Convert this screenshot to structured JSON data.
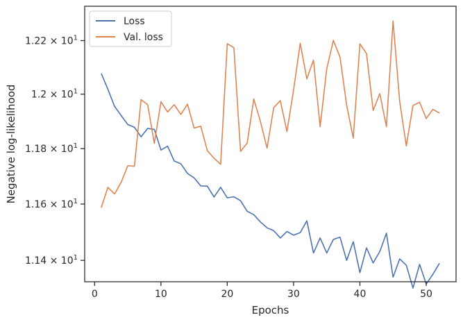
{
  "chart_data": {
    "type": "line",
    "xlabel": "Epochs",
    "ylabel": "Negative log-likelihood",
    "xlim": [
      -1.5,
      54.5
    ],
    "ylim": [
      11.325,
      12.33
    ],
    "y_scale": "log",
    "xticks": [
      0,
      10,
      20,
      30,
      40,
      50
    ],
    "xtick_labels": [
      "0",
      "10",
      "20",
      "30",
      "40",
      "50"
    ],
    "yticks": [
      11.4,
      11.6,
      11.8,
      12.0,
      12.2
    ],
    "ytick_labels": [
      {
        "base": "1.14",
        "mult": "× 10",
        "exp": "1"
      },
      {
        "base": "1.16",
        "mult": "× 10",
        "exp": "1"
      },
      {
        "base": "1.18",
        "mult": "× 10",
        "exp": "1"
      },
      {
        "base": "1.2",
        "mult": "× 10",
        "exp": "1"
      },
      {
        "base": "1.22",
        "mult": "× 10",
        "exp": "1"
      }
    ],
    "grid": false,
    "legend_position": "top-left",
    "x": [
      1,
      2,
      3,
      4,
      5,
      6,
      7,
      8,
      9,
      10,
      11,
      12,
      13,
      14,
      15,
      16,
      17,
      18,
      19,
      20,
      21,
      22,
      23,
      24,
      25,
      26,
      27,
      28,
      29,
      30,
      31,
      32,
      33,
      34,
      35,
      36,
      37,
      38,
      39,
      40,
      41,
      42,
      43,
      44,
      45,
      46,
      47,
      48,
      49,
      50,
      51,
      52
    ],
    "series": [
      {
        "name": "Loss",
        "color": "#4c72b0",
        "values": [
          12.077,
          12.018,
          11.955,
          11.921,
          11.888,
          11.878,
          11.843,
          11.874,
          11.87,
          11.795,
          11.809,
          11.755,
          11.745,
          11.71,
          11.694,
          11.665,
          11.664,
          11.625,
          11.66,
          11.622,
          11.626,
          11.612,
          11.574,
          11.562,
          11.536,
          11.515,
          11.505,
          11.479,
          11.502,
          11.489,
          11.498,
          11.54,
          11.426,
          11.479,
          11.426,
          11.474,
          11.482,
          11.4,
          11.466,
          11.357,
          11.444,
          11.391,
          11.431,
          11.496,
          11.341,
          11.405,
          11.383,
          11.303,
          11.386,
          11.317,
          11.351,
          11.39
        ]
      },
      {
        "name": "Val. loss",
        "color": "#dd8452",
        "values": [
          11.587,
          11.66,
          11.636,
          11.678,
          11.738,
          11.736,
          11.98,
          11.961,
          11.819,
          11.972,
          11.934,
          11.961,
          11.925,
          11.963,
          11.875,
          11.882,
          11.792,
          11.765,
          11.743,
          12.188,
          12.173,
          11.79,
          11.82,
          11.982,
          11.899,
          11.802,
          11.95,
          11.976,
          11.862,
          12.016,
          12.19,
          12.057,
          12.127,
          11.88,
          12.094,
          12.201,
          12.138,
          11.96,
          11.838,
          12.188,
          12.151,
          11.94,
          12.002,
          11.88,
          12.274,
          11.973,
          11.81,
          11.958,
          11.97,
          11.91,
          11.944,
          11.93
        ]
      }
    ]
  }
}
